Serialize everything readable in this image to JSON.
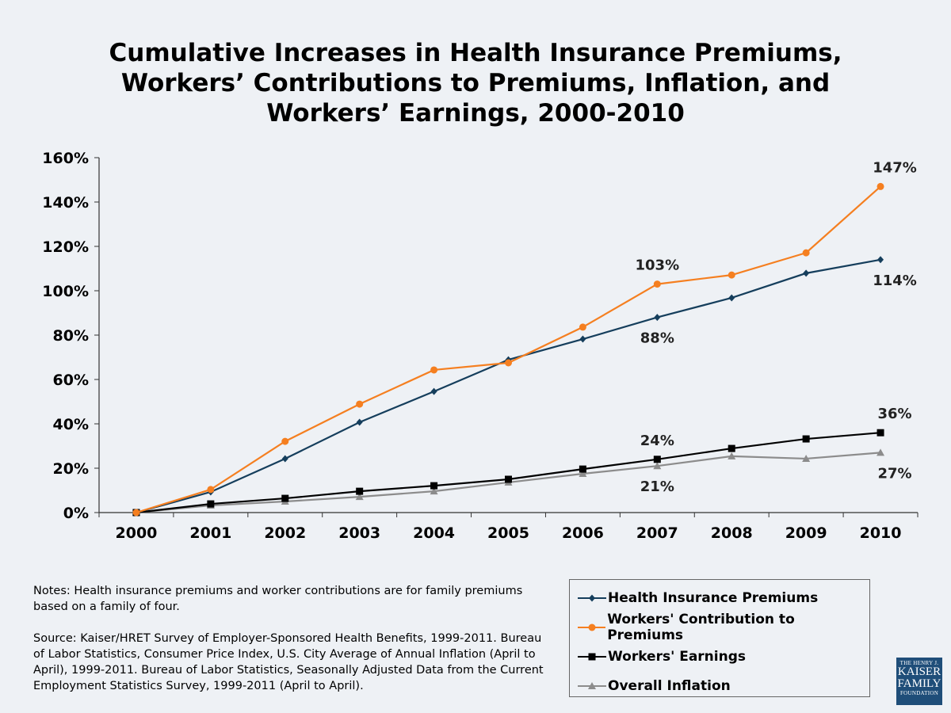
{
  "chart_data": {
    "type": "line",
    "title": "Cumulative Increases in Health Insurance Premiums,\nWorkers’ Contributions to Premiums, Inflation, and\nWorkers’ Earnings, 2000-2010",
    "categories": [
      "2000",
      "2001",
      "2002",
      "2003",
      "2004",
      "2005",
      "2006",
      "2007",
      "2008",
      "2009",
      "2010"
    ],
    "y_ticks": [
      "0%",
      "20%",
      "40%",
      "60%",
      "80%",
      "100%",
      "120%",
      "140%",
      "160%"
    ],
    "ylim": [
      0,
      160
    ],
    "y_unit": "%",
    "grid": false,
    "legend_position": "bottom-right",
    "series": [
      {
        "name": "Health Insurance Premiums",
        "color": "#153e5c",
        "marker": "diamond",
        "values": [
          0,
          9.3,
          24.3,
          40.7,
          54.6,
          68.9,
          78.2,
          88,
          96.8,
          107.9,
          114
        ]
      },
      {
        "name": "Workers' Contribution to Premiums",
        "color": "#f57f20",
        "marker": "circle",
        "values": [
          0,
          10.4,
          32.1,
          48.9,
          64.3,
          67.5,
          83.6,
          103,
          107.1,
          117.1,
          147
        ]
      },
      {
        "name": "Workers' Earnings",
        "color": "#000000",
        "marker": "square",
        "values": [
          0,
          3.9,
          6.4,
          9.6,
          12.1,
          15,
          19.6,
          24,
          28.9,
          33.2,
          36
        ]
      },
      {
        "name": "Overall Inflation",
        "color": "#8c8c8c",
        "marker": "triangle",
        "values": [
          0,
          3.2,
          5,
          7.1,
          9.6,
          13.6,
          17.5,
          21,
          25.4,
          24.3,
          27
        ]
      }
    ],
    "data_labels": [
      {
        "series": 1,
        "x": "2010",
        "text": "147%",
        "pos": "above"
      },
      {
        "series": 0,
        "x": "2010",
        "text": "114%",
        "pos": "below"
      },
      {
        "series": 1,
        "x": "2007",
        "text": "103%",
        "pos": "above"
      },
      {
        "series": 0,
        "x": "2007",
        "text": "88%",
        "pos": "below"
      },
      {
        "series": 2,
        "x": "2007",
        "text": "24%",
        "pos": "above"
      },
      {
        "series": 3,
        "x": "2007",
        "text": "21%",
        "pos": "below"
      },
      {
        "series": 2,
        "x": "2010",
        "text": "36%",
        "pos": "above"
      },
      {
        "series": 3,
        "x": "2010",
        "text": "27%",
        "pos": "below"
      }
    ]
  },
  "notes": "Notes: Health insurance premiums and worker contributions are for family premiums based on a family of four.",
  "source": "Source:  Kaiser/HRET Survey of Employer-Sponsored Health Benefits, 1999-2011. Bureau of Labor Statistics, Consumer Price Index, U.S. City Average of Annual Inflation (April to April), 1999-2011. Bureau of Labor Statistics, Seasonally Adjusted Data from the Current Employment Statistics Survey, 1999-2011 (April to April).",
  "logo": {
    "line1": "THE HENRY J.",
    "line2": "KAISER",
    "line3": "FAMILY",
    "line4": "FOUNDATION"
  }
}
